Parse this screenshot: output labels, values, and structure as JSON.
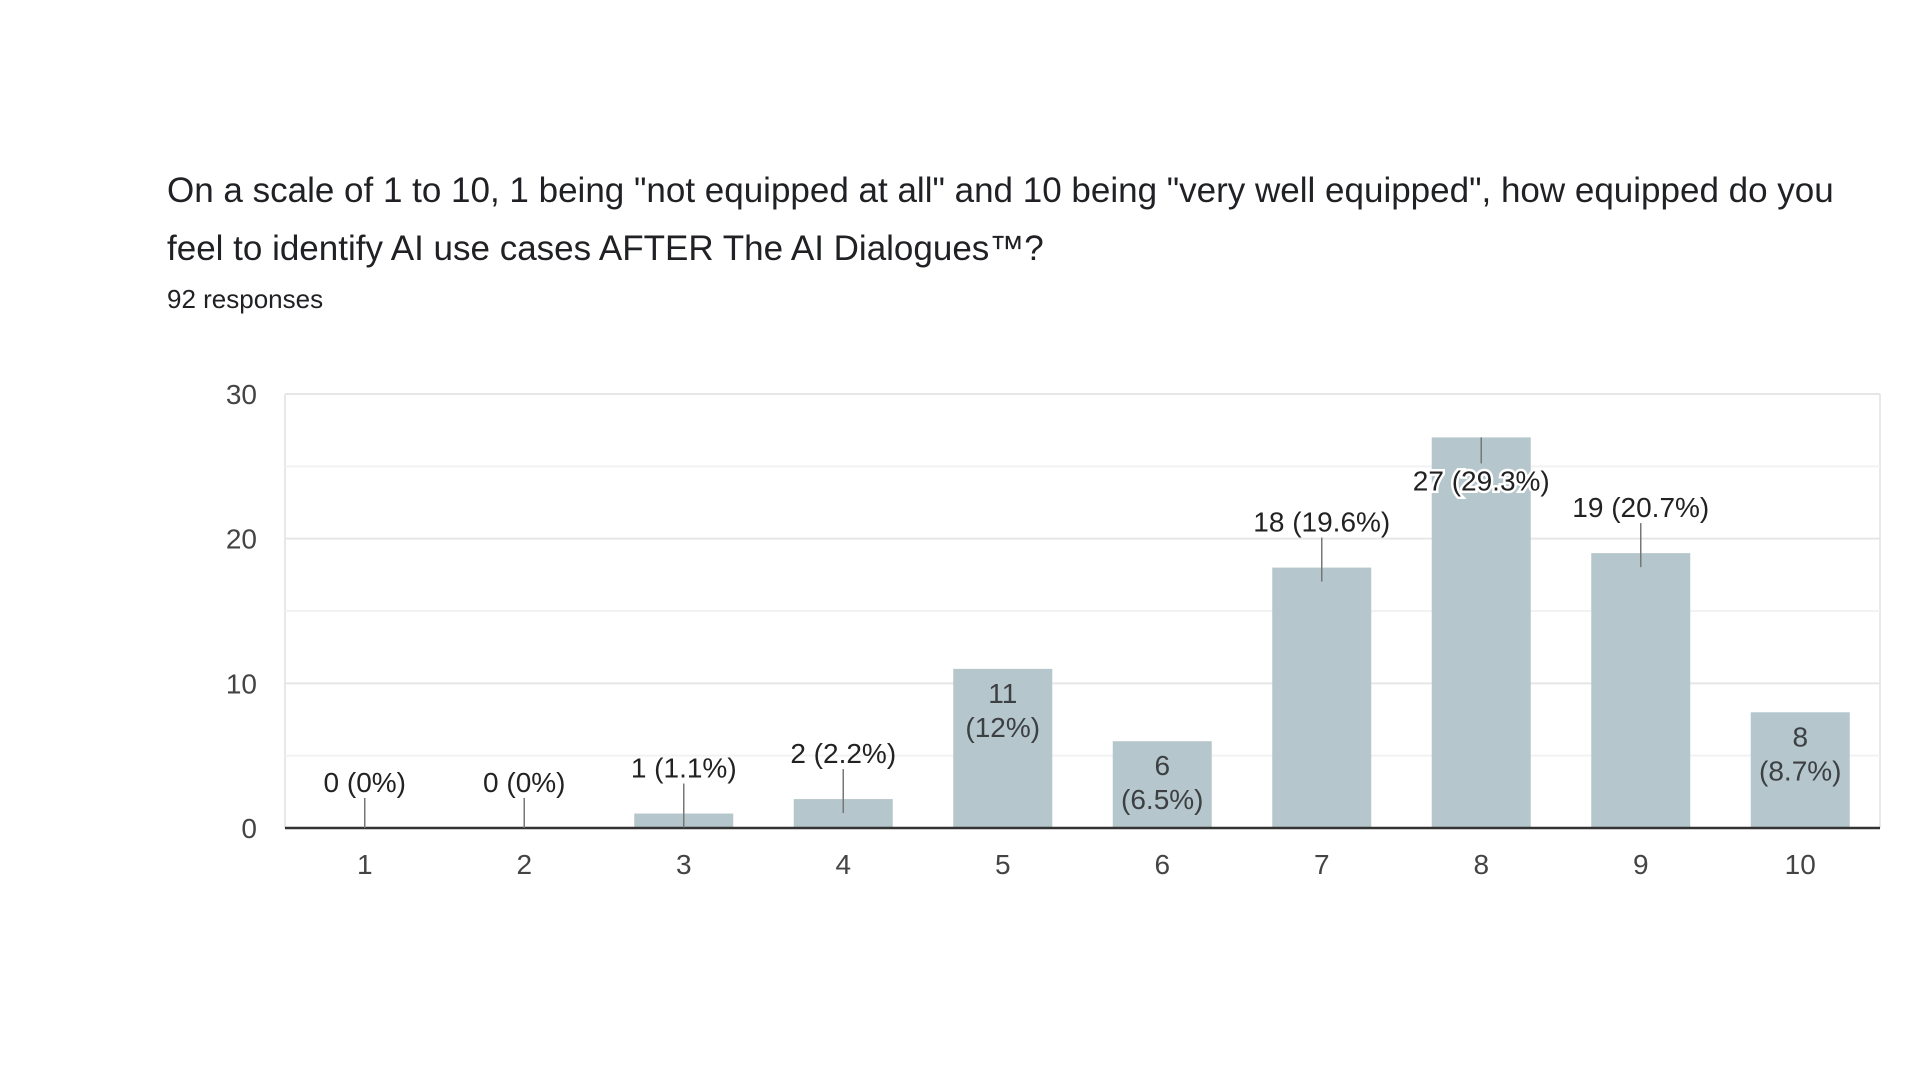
{
  "form": {
    "question": "On a scale of 1 to 10, 1 being \"not equipped at all\" and 10 being \"very well equipped\", how equipped do you feel to identify AI use cases  AFTER The AI Dialogues™?",
    "responses": "92 responses"
  },
  "chart_data": {
    "type": "bar",
    "title": "",
    "xlabel": "",
    "ylabel": "",
    "categories": [
      "1",
      "2",
      "3",
      "4",
      "5",
      "6",
      "7",
      "8",
      "9",
      "10"
    ],
    "values": [
      0,
      0,
      1,
      2,
      11,
      6,
      18,
      27,
      19,
      8
    ],
    "data_labels": [
      "0 (0%)",
      "0 (0%)",
      "1 (1.1%)",
      "2 (2.2%)",
      "11 (12%)",
      "6 (6.5%)",
      "18 (19.6%)",
      "27 (29.3%)",
      "19 (20.7%)",
      "8 (8.7%)"
    ],
    "ylim": [
      0,
      30
    ],
    "yticks": [
      "0",
      "10",
      "20",
      "30"
    ],
    "grid": true,
    "legend": "none",
    "bar_color": "#b5c6cc"
  }
}
